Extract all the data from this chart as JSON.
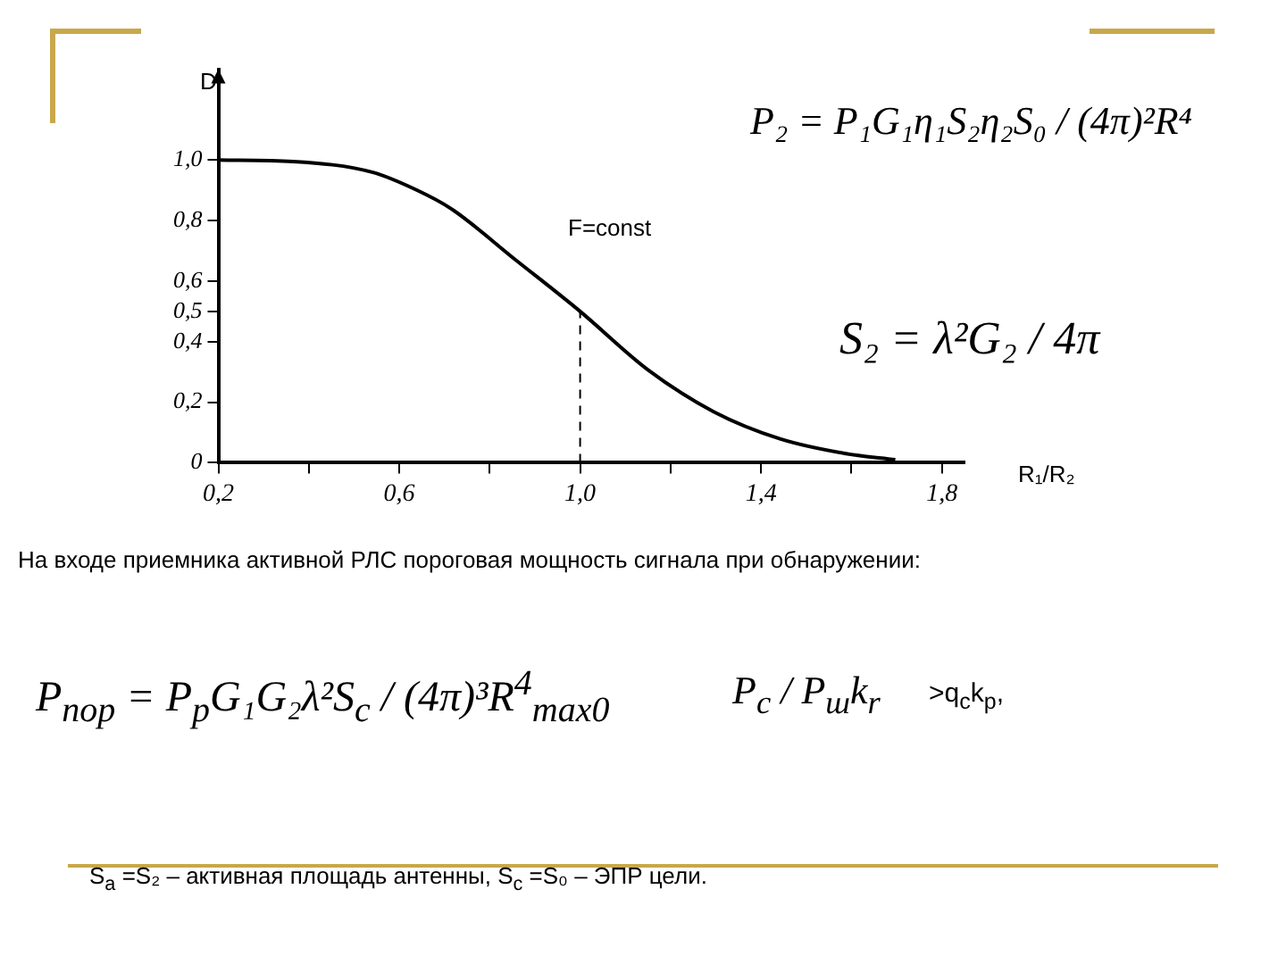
{
  "chart_data": {
    "type": "line",
    "xlabel": "R₁/R₂",
    "ylabel": "D",
    "x": [
      0.2,
      0.365,
      0.54,
      0.64,
      0.714,
      0.86,
      1.0,
      1.15,
      1.296,
      1.442,
      1.588,
      1.697
    ],
    "series": [
      {
        "color": "#000000",
        "values": [
          1.0,
          0.995,
          0.96,
          0.9,
          0.84,
          0.667,
          0.5,
          0.307,
          0.168,
          0.079,
          0.03,
          0.01
        ]
      }
    ],
    "xlim": [
      0.2,
      1.85
    ],
    "xticks": [
      {
        "value": 0.2,
        "label": "0,2"
      },
      {
        "value": 0.4,
        "label": null
      },
      {
        "value": 0.6,
        "label": "0,6"
      },
      {
        "value": 0.8,
        "label": null
      },
      {
        "value": 1.0,
        "label": "1,0"
      },
      {
        "value": 1.2,
        "label": null
      },
      {
        "value": 1.4,
        "label": "1,4"
      },
      {
        "value": 1.6,
        "label": null
      },
      {
        "value": 1.8,
        "label": "1,8"
      }
    ],
    "ylim": [
      0,
      1.3
    ],
    "yticks": [
      0,
      {
        "value": 0.2,
        "label": "0,2"
      },
      {
        "value": 0.4,
        "label": "0,4"
      },
      {
        "value": 0.5,
        "label": "0,5"
      },
      {
        "value": 0.6,
        "label": "0,6"
      },
      {
        "value": 0.8,
        "label": "0,8"
      },
      {
        "value": 1.0,
        "label": "1,0"
      }
    ],
    "ref_lines": [
      {
        "axis": "x",
        "value": 1.0,
        "line_style": "dashed",
        "color": "#000000"
      }
    ],
    "grid": false,
    "legend": false,
    "marker": "none",
    "line_style": "solid",
    "annotations": [
      "F=const",
      "P₂ = P₁G₁η₁S₂η₂S₀ / (4π)²R⁴",
      "S₂ = λ²G₂ / 4π",
      "На входе приемника активной РЛС пороговая мощность сигнала при обнаружении:",
      "P$_{пор}$ = P$_{p}$G₁G₂λ²S$_{c}$ / (4π)³R$^{4}$$_{max0}$",
      "P$_{c}$ / P$_{ш}$k$_{r}$",
      ">q$_{c}$k$_{p}$,",
      "S$_{a}$ =S₂ – активная площадь антенны, S$_{c}$ =S₀ – ЭПР цели."
    ]
  }
}
